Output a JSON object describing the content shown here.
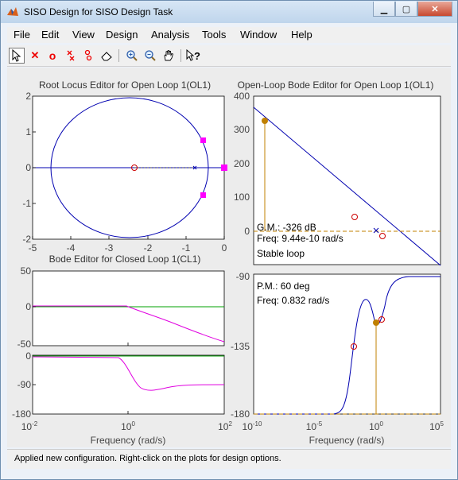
{
  "window": {
    "title": "SISO Design for SISO Design Task"
  },
  "menu": [
    "File",
    "Edit",
    "View",
    "Design",
    "Analysis",
    "Tools",
    "Window",
    "Help"
  ],
  "toolbar": {
    "tools": [
      "arrow-select",
      "delete-x",
      "add-zero-o",
      "add-pole-x-ox",
      "add-complex-pole-zero",
      "eraser",
      "zoom-in",
      "zoom-out",
      "pan-hand",
      "whats-this"
    ]
  },
  "root_locus": {
    "title": "Root Locus Editor for Open Loop 1(OL1)",
    "x_ticks": [
      "-5",
      "-4",
      "-3",
      "-2",
      "-1",
      "0"
    ],
    "y_ticks": [
      "2",
      "1",
      "0",
      "-1",
      "-2"
    ]
  },
  "ol_bode": {
    "title": "Open-Loop Bode Editor for Open Loop 1(OL1)",
    "mag_y_ticks": [
      "400",
      "300",
      "200",
      "100",
      "0"
    ],
    "phase_y_ticks": [
      "-90",
      "-135",
      "-180"
    ],
    "gm_text": "G.M.: -326 dB",
    "gm_freq_text": "Freq: 9.44e-10 rad/s",
    "stability_text": "Stable loop",
    "pm_text": "P.M.: 60 deg",
    "pm_freq_text": "Freq: 0.832 rad/s",
    "x_ticks": [
      "10",
      "10",
      "10",
      "10"
    ],
    "x_exps": [
      "-10",
      "-5",
      "0",
      "5"
    ],
    "xlabel": "Frequency (rad/s)"
  },
  "cl_bode": {
    "title": "Bode Editor for Closed Loop 1(CL1)",
    "mag_y_ticks": [
      "50",
      "0",
      "-50"
    ],
    "phase_y_ticks": [
      "0",
      "-90",
      "-180"
    ],
    "x_ticks": [
      "10",
      "10",
      "10"
    ],
    "x_exps": [
      "-2",
      "0",
      "2"
    ],
    "xlabel": "Frequency (rad/s)"
  },
  "status": {
    "text": "Applied new configuration. Right-click on the plots for design options."
  },
  "colors": {
    "locus": "#0000b0",
    "pole_marker": "#ff00ff",
    "zero_marker": "#cc0000",
    "margin_marker": "#c08000",
    "closed_green": "#00a000",
    "closed_magenta": "#e000e0"
  }
}
